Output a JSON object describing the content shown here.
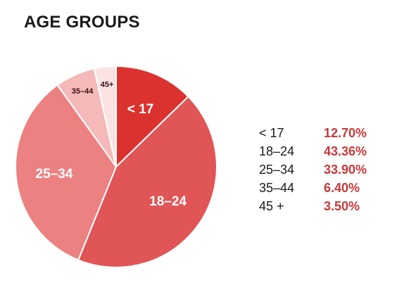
{
  "title": "AGE GROUPS",
  "colors": {
    "legend_value": "#c8383a"
  },
  "chart_data": {
    "type": "pie",
    "title": "AGE GROUPS",
    "start": "12 o'clock",
    "direction": "clockwise",
    "slices": [
      {
        "label": "< 17",
        "legend_label": "< 17",
        "value": 12.7,
        "display": "12.70%",
        "color": "#dc322f",
        "slice_label_color": "#ffffff",
        "slice_label_size": "large"
      },
      {
        "label": "18–24",
        "legend_label": "18–24",
        "value": 43.36,
        "display": "43.36%",
        "color": "#e05555",
        "slice_label_color": "#ffffff",
        "slice_label_size": "large"
      },
      {
        "label": "25–34",
        "legend_label": "25–34",
        "value": 33.9,
        "display": "33.90%",
        "color": "#ec8181",
        "slice_label_color": "#ffffff",
        "slice_label_size": "large"
      },
      {
        "label": "35–44",
        "legend_label": "35–44",
        "value": 6.4,
        "display": "6.40%",
        "color": "#f4b9b8",
        "slice_label_color": "#3a1010",
        "slice_label_size": "small"
      },
      {
        "label": "45+",
        "legend_label": "45 +",
        "value": 3.5,
        "display": "3.50%",
        "color": "#fbe3e3",
        "slice_label_color": "#3a1010",
        "slice_label_size": "small"
      }
    ]
  }
}
